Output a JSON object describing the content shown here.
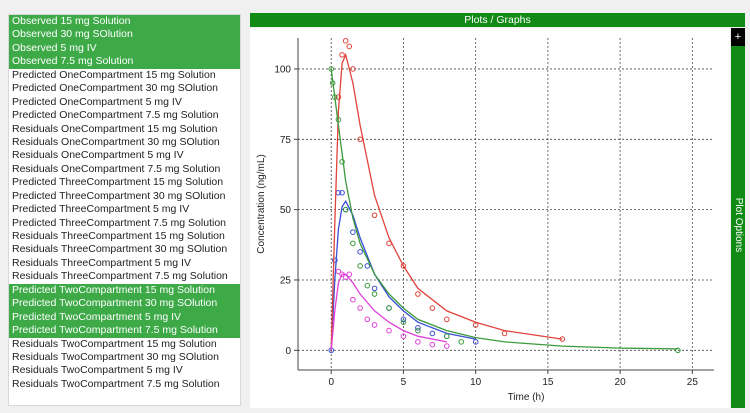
{
  "series_list": [
    {
      "label": "Observed 15 mg Solution",
      "selected": true
    },
    {
      "label": "Observed 30 mg SOlution",
      "selected": true
    },
    {
      "label": "Observed 5 mg IV",
      "selected": true
    },
    {
      "label": "Observed 7.5 mg Solution",
      "selected": true
    },
    {
      "label": "Predicted OneCompartment 15 mg Solution",
      "selected": false
    },
    {
      "label": "Predicted OneCompartment 30 mg SOlution",
      "selected": false
    },
    {
      "label": "Predicted OneCompartment 5 mg IV",
      "selected": false
    },
    {
      "label": "Predicted OneCompartment 7.5 mg Solution",
      "selected": false
    },
    {
      "label": "Residuals OneCompartment 15 mg Solution",
      "selected": false
    },
    {
      "label": "Residuals OneCompartment 30 mg SOlution",
      "selected": false
    },
    {
      "label": "Residuals OneCompartment 5 mg IV",
      "selected": false
    },
    {
      "label": "Residuals OneCompartment 7.5 mg Solution",
      "selected": false
    },
    {
      "label": "Predicted ThreeCompartment 15 mg Solution",
      "selected": false
    },
    {
      "label": "Predicted ThreeCompartment 30 mg SOlution",
      "selected": false
    },
    {
      "label": "Predicted ThreeCompartment 5 mg IV",
      "selected": false
    },
    {
      "label": "Predicted ThreeCompartment 7.5 mg Solution",
      "selected": false
    },
    {
      "label": "Residuals ThreeCompartment 15 mg Solution",
      "selected": false
    },
    {
      "label": "Residuals ThreeCompartment 30 mg SOlution",
      "selected": false
    },
    {
      "label": "Residuals ThreeCompartment 5 mg IV",
      "selected": false
    },
    {
      "label": "Residuals ThreeCompartment 7.5 mg Solution",
      "selected": false
    },
    {
      "label": "Predicted TwoCompartment 15 mg Solution",
      "selected": true
    },
    {
      "label": "Predicted TwoCompartment 30 mg SOlution",
      "selected": true
    },
    {
      "label": "Predicted TwoCompartment 5 mg IV",
      "selected": true
    },
    {
      "label": "Predicted TwoCompartment 7.5 mg Solution",
      "selected": true
    },
    {
      "label": "Residuals TwoCompartment 15 mg Solution",
      "selected": false
    },
    {
      "label": "Residuals TwoCompartment 30 mg SOlution",
      "selected": false
    },
    {
      "label": "Residuals TwoCompartment 5 mg IV",
      "selected": false
    },
    {
      "label": "Residuals TwoCompartment 7.5 mg Solution",
      "selected": false
    }
  ],
  "plots_header": {
    "title": "Plots / Graphs"
  },
  "plot_options": {
    "label": "Plot Options",
    "toggle_symbol": "+"
  },
  "colors": {
    "selected_bg": "#3daa47",
    "header_bg": "#118a16"
  },
  "chart_data": {
    "type": "scatter",
    "xlabel": "Time (h)",
    "ylabel": "Concentration (ng/mL)",
    "xlim": [
      -2.3,
      26.5
    ],
    "ylim": [
      -7,
      111
    ],
    "xticks": [
      0,
      5,
      10,
      15,
      20,
      25
    ],
    "yticks": [
      0,
      25,
      50,
      75,
      100
    ],
    "grid": true,
    "series": [
      {
        "name": "15 mg Solution",
        "color": "#3a4fd6",
        "observed": {
          "x": [
            0,
            0.25,
            0.5,
            0.75,
            1,
            1.5,
            2,
            2.5,
            3,
            4,
            5,
            6,
            7,
            8,
            10
          ],
          "y": [
            0,
            32,
            56,
            56,
            50,
            42,
            35,
            30,
            22,
            15,
            11,
            8,
            6,
            5,
            3
          ]
        },
        "predicted": {
          "x": [
            0,
            0.25,
            0.5,
            0.75,
            1,
            1.5,
            2,
            3,
            4,
            5,
            6,
            8,
            10
          ],
          "y": [
            0,
            25,
            43,
            51,
            53,
            48,
            40,
            27,
            19,
            14,
            10,
            6,
            4
          ]
        }
      },
      {
        "name": "30 mg SOlution",
        "color": "#e0433a",
        "observed": {
          "x": [
            0.5,
            0.75,
            1,
            1.25,
            1.5,
            2,
            3,
            4,
            5,
            6,
            7,
            8,
            10,
            12,
            16
          ],
          "y": [
            90,
            105,
            110,
            108,
            100,
            75,
            48,
            38,
            30,
            20,
            15,
            11,
            9,
            6,
            4
          ]
        },
        "predicted": {
          "x": [
            0,
            0.25,
            0.5,
            0.75,
            1,
            1.5,
            2,
            3,
            4,
            5,
            6,
            8,
            10,
            12,
            16
          ],
          "y": [
            0,
            45,
            85,
            102,
            105,
            95,
            80,
            55,
            40,
            30,
            22,
            14,
            10,
            7,
            4
          ]
        }
      },
      {
        "name": "5 mg IV",
        "color": "#3b9a3b",
        "observed": {
          "x": [
            0,
            0.1,
            0.25,
            0.5,
            0.75,
            1,
            1.5,
            2,
            2.5,
            3,
            4,
            5,
            6,
            8,
            9,
            24
          ],
          "y": [
            100,
            95,
            90,
            82,
            67,
            50,
            38,
            30,
            23,
            20,
            15,
            10,
            7,
            5,
            3,
            0
          ]
        },
        "predicted": {
          "x": [
            0,
            0.25,
            0.5,
            0.75,
            1,
            1.5,
            2,
            3,
            4,
            5,
            6,
            8,
            10,
            12,
            16,
            20,
            24
          ],
          "y": [
            100,
            90,
            80,
            70,
            60,
            47,
            38,
            27,
            20,
            15,
            11,
            7,
            4.5,
            3,
            1.5,
            0.8,
            0.5
          ]
        }
      },
      {
        "name": "7.5 mg Solution",
        "color": "#e040d8",
        "observed": {
          "x": [
            0.5,
            0.75,
            1,
            1.25,
            1.5,
            2,
            2.5,
            3,
            4,
            5,
            6,
            7,
            8
          ],
          "y": [
            28,
            27,
            26,
            27,
            18,
            15,
            11,
            9,
            7,
            5,
            3,
            2,
            1.5
          ]
        },
        "predicted": {
          "x": [
            0,
            0.25,
            0.5,
            0.75,
            1,
            1.5,
            2,
            3,
            4,
            5,
            6,
            8
          ],
          "y": [
            0,
            14,
            24,
            27,
            27,
            24,
            20,
            14,
            10,
            7,
            5,
            3
          ]
        }
      }
    ]
  }
}
